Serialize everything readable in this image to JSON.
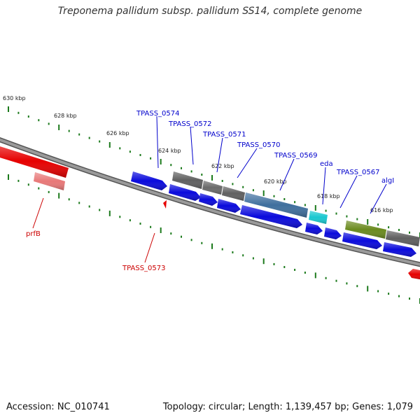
{
  "title": "Treponema pallidum subsp. pallidum SS14, complete genome",
  "footer": {
    "accession": "Accession: NC_010741",
    "stats": "Topology: circular; Length: 1,139,457 bp; Genes: 1,079"
  },
  "colors": {
    "background": "#ffffff",
    "backbone": "#8a8a8a",
    "tick": "#1c7a1c",
    "label_blue": "#0000cc",
    "label_red": "#cc0000",
    "gene_blue": "#0a0adc",
    "gene_gray": "#606060",
    "gene_steel": "#3f6f9e",
    "gene_cyan": "#18c8d0",
    "gene_olive": "#6a8a1e",
    "gene_red": "#e60000",
    "gene_pink": "#e07070"
  },
  "scale": {
    "unit": "kbp",
    "ticks": [
      {
        "label": "630 kbp"
      },
      {
        "label": "628 kbp"
      },
      {
        "label": "626 kbp"
      },
      {
        "label": "624 kbp"
      },
      {
        "label": "622 kbp"
      },
      {
        "label": "620 kbp"
      },
      {
        "label": "618 kbp"
      },
      {
        "label": "616 kbp"
      }
    ]
  },
  "gene_labels": [
    {
      "text": "TPASS_0574",
      "color": "label_blue"
    },
    {
      "text": "TPASS_0572",
      "color": "label_blue"
    },
    {
      "text": "TPASS_0571",
      "color": "label_blue"
    },
    {
      "text": "TPASS_0570",
      "color": "label_blue"
    },
    {
      "text": "TPASS_0569",
      "color": "label_blue"
    },
    {
      "text": "eda",
      "color": "label_blue"
    },
    {
      "text": "TPASS_0567",
      "color": "label_blue"
    },
    {
      "text": "algI",
      "color": "label_blue"
    },
    {
      "text": "prfB",
      "color": "label_red"
    },
    {
      "text": "TPASS_0573",
      "color": "label_red"
    }
  ]
}
